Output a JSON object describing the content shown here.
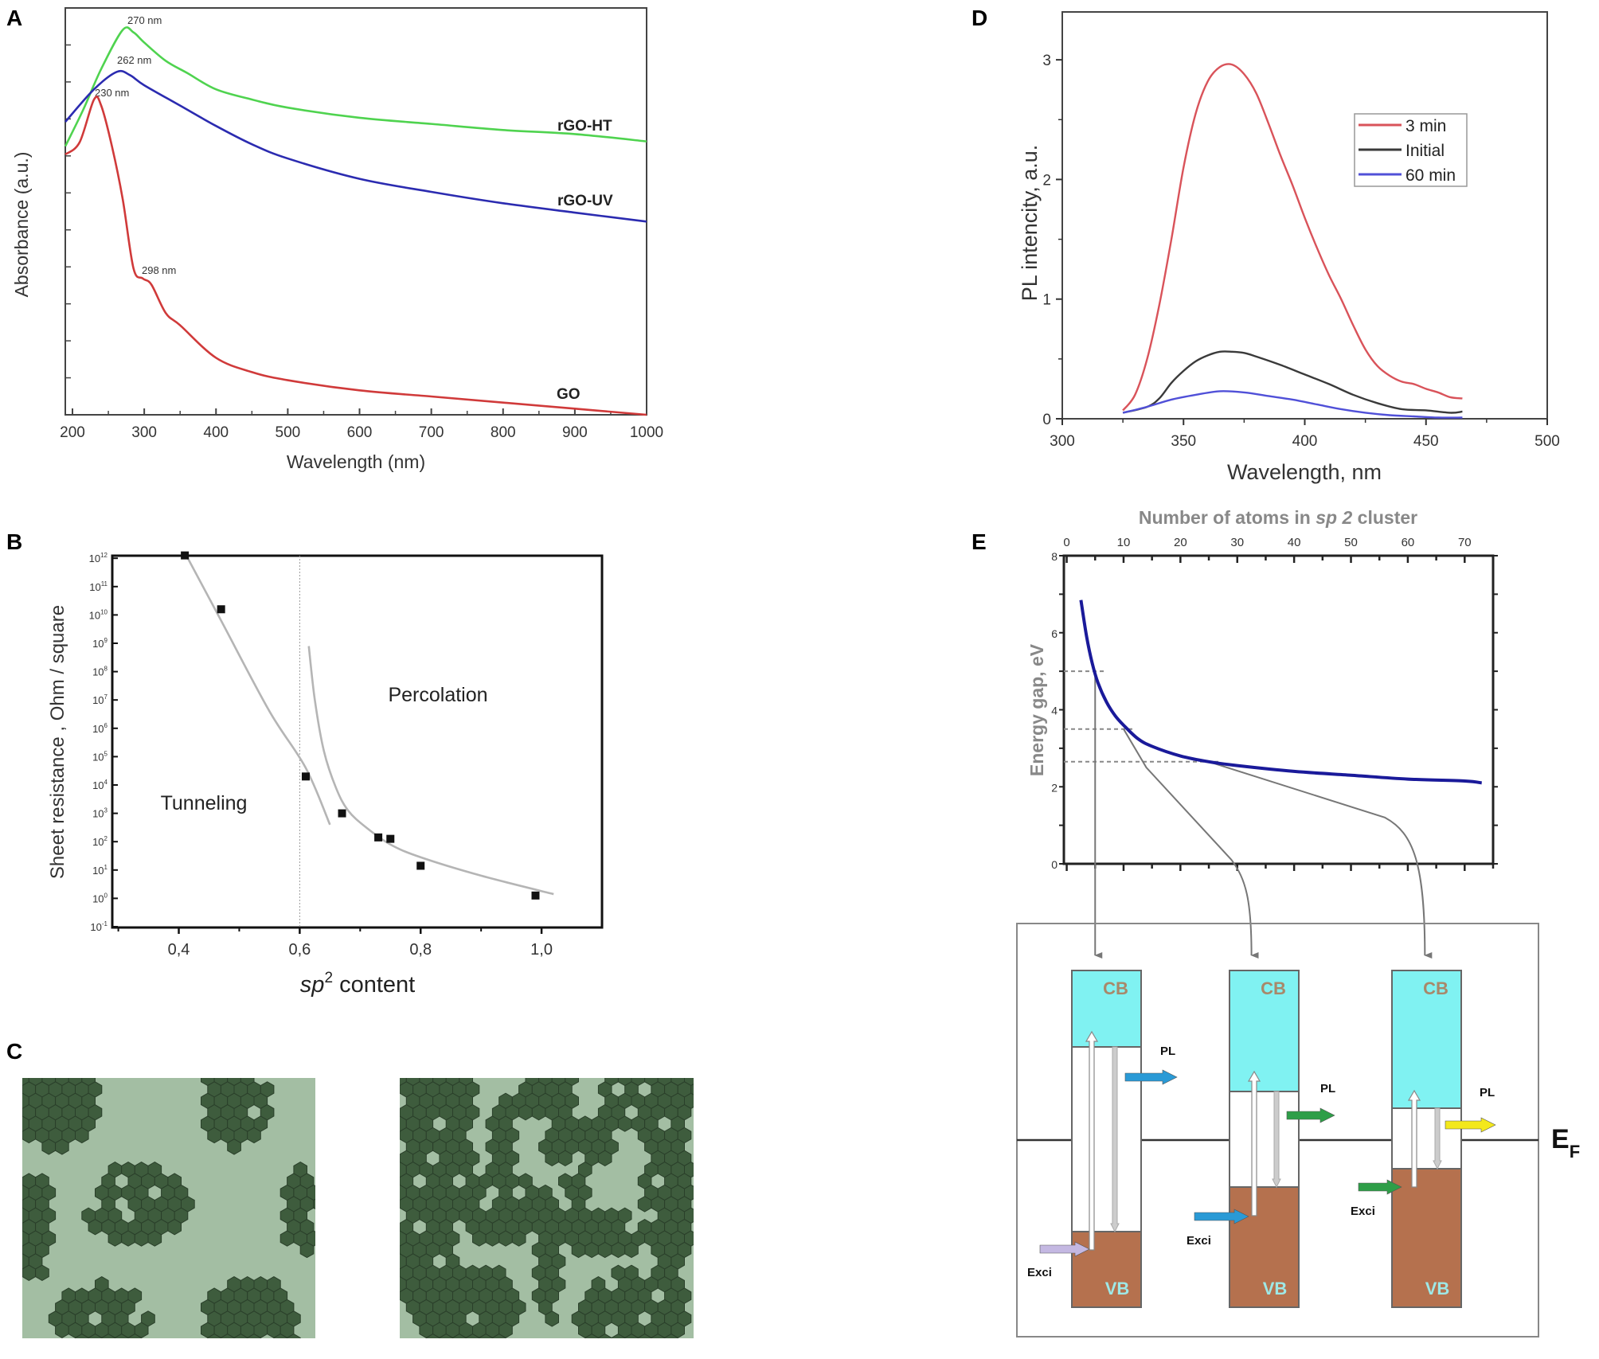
{
  "panels": {
    "a": "A",
    "b": "B",
    "c": "C",
    "d": "D",
    "e": "E"
  },
  "chart_data": [
    {
      "panel": "A",
      "type": "line",
      "xlabel": "Wavelength (nm)",
      "ylabel": "Absorbance (a.u.)",
      "xlim": [
        190,
        1000
      ],
      "ylim": [
        0,
        1
      ],
      "xticks": [
        "200",
        "300",
        "400",
        "500",
        "600",
        "700",
        "800",
        "900",
        "1000"
      ],
      "yticks_labeled": false,
      "grid": false,
      "annotations": [
        "270 nm",
        "262 nm",
        "230 nm",
        "298 nm"
      ],
      "series": [
        {
          "name": "rGO-HT",
          "color": "#4fd34f",
          "x": [
            190,
            215,
            240,
            270,
            285,
            300,
            330,
            360,
            400,
            450,
            500,
            600,
            700,
            800,
            900,
            1000
          ],
          "y": [
            0.66,
            0.75,
            0.85,
            0.946,
            0.94,
            0.915,
            0.87,
            0.84,
            0.8,
            0.775,
            0.755,
            0.73,
            0.715,
            0.7,
            0.69,
            0.672
          ]
        },
        {
          "name": "rGO-UV",
          "color": "#2b2bb0",
          "x": [
            190,
            230,
            262,
            280,
            300,
            350,
            400,
            450,
            500,
            600,
            700,
            800,
            900,
            1000
          ],
          "y": [
            0.72,
            0.8,
            0.843,
            0.835,
            0.81,
            0.76,
            0.71,
            0.665,
            0.63,
            0.58,
            0.548,
            0.52,
            0.497,
            0.475
          ]
        },
        {
          "name": "GO",
          "color": "#d03a3a",
          "x": [
            190,
            210,
            230,
            240,
            255,
            270,
            285,
            298,
            310,
            330,
            350,
            400,
            450,
            500,
            600,
            700,
            800,
            900,
            1000
          ],
          "y": [
            0.64,
            0.67,
            0.775,
            0.76,
            0.66,
            0.53,
            0.36,
            0.335,
            0.32,
            0.25,
            0.22,
            0.14,
            0.105,
            0.085,
            0.06,
            0.045,
            0.03,
            0.015,
            0.0
          ]
        }
      ]
    },
    {
      "panel": "D",
      "type": "line",
      "xlabel": "Wavelength, nm",
      "ylabel": "PL intencity, a.u.",
      "xlim": [
        300,
        500
      ],
      "ylim": [
        0,
        3.4
      ],
      "xticks": [
        "300",
        "350",
        "400",
        "450",
        "500"
      ],
      "yticks": [
        "0",
        "1",
        "2",
        "3"
      ],
      "grid": false,
      "legend": "top-right",
      "series": [
        {
          "name": "3 min",
          "color": "#d9535a",
          "x": [
            325,
            330,
            335,
            340,
            345,
            350,
            355,
            360,
            365,
            370,
            375,
            380,
            385,
            390,
            395,
            400,
            405,
            410,
            415,
            420,
            425,
            430,
            435,
            440,
            445,
            450,
            455,
            460,
            465
          ],
          "y": [
            0.07,
            0.2,
            0.5,
            0.95,
            1.5,
            2.1,
            2.55,
            2.82,
            2.94,
            2.96,
            2.88,
            2.72,
            2.47,
            2.2,
            1.95,
            1.68,
            1.43,
            1.2,
            1.0,
            0.78,
            0.58,
            0.44,
            0.36,
            0.31,
            0.29,
            0.25,
            0.22,
            0.18,
            0.17
          ]
        },
        {
          "name": "Initial",
          "color": "#3a3a3a",
          "x": [
            325,
            335,
            340,
            345,
            350,
            355,
            360,
            365,
            370,
            375,
            380,
            390,
            400,
            410,
            420,
            430,
            440,
            450,
            460,
            465
          ],
          "y": [
            0.05,
            0.1,
            0.17,
            0.3,
            0.4,
            0.48,
            0.53,
            0.56,
            0.56,
            0.55,
            0.52,
            0.45,
            0.37,
            0.29,
            0.2,
            0.13,
            0.08,
            0.07,
            0.05,
            0.06
          ]
        },
        {
          "name": "60 min",
          "color": "#5050d8",
          "x": [
            325,
            335,
            345,
            355,
            365,
            375,
            385,
            395,
            405,
            415,
            425,
            435,
            445,
            455,
            465
          ],
          "y": [
            0.05,
            0.1,
            0.16,
            0.2,
            0.23,
            0.22,
            0.19,
            0.16,
            0.12,
            0.08,
            0.05,
            0.03,
            0.02,
            0.01,
            0.01
          ]
        }
      ]
    },
    {
      "panel": "B",
      "type": "scatter",
      "xlabel": {
        "italic": "sp",
        "sup": "2",
        "rest": " content"
      },
      "ylabel": "Sheet resistance , Ohm / square",
      "xlim": [
        0.29,
        1.1
      ],
      "ylim_log10": [
        -1,
        12.1
      ],
      "yscale": "log",
      "xticks": [
        "0,4",
        "0,6",
        "0,8",
        "1,0"
      ],
      "ytick_exponents": [
        "-1",
        "0",
        "1",
        "2",
        "3",
        "4",
        "5",
        "6",
        "7",
        "8",
        "9",
        "10",
        "11",
        "12"
      ],
      "ytick_base": "10",
      "threshold_x": 0.6,
      "regions": [
        "Tunneling",
        "Percolation"
      ],
      "points": {
        "x": [
          0.41,
          0.47,
          0.61,
          0.67,
          0.73,
          0.75,
          0.8,
          0.99
        ],
        "log10_y": [
          12.1,
          10.2,
          4.3,
          3.0,
          2.15,
          2.1,
          1.15,
          0.1
        ]
      },
      "fits": [
        {
          "x": [
            0.41,
            0.47,
            0.55,
            0.61,
            0.65
          ],
          "log10_y": [
            12.2,
            9.8,
            6.6,
            4.6,
            2.6
          ]
        },
        {
          "x": [
            0.615,
            0.625,
            0.64,
            0.66,
            0.68,
            0.71,
            0.75,
            0.8,
            0.9,
            1.02
          ],
          "log10_y": [
            8.9,
            7.0,
            5.2,
            3.9,
            3.1,
            2.5,
            1.9,
            1.45,
            0.8,
            0.15
          ]
        }
      ]
    },
    {
      "panel": "E",
      "type": "line",
      "title": {
        "pre": "Number of atoms in ",
        "italic": "sp 2",
        "post": " cluster"
      },
      "ylabel": "Energy gap, eV",
      "xlim": [
        -0.5,
        75
      ],
      "ylim": [
        0,
        8
      ],
      "xticks": [
        "0",
        "10",
        "20",
        "30",
        "40",
        "50",
        "60",
        "70"
      ],
      "yticks": [
        "0",
        "2",
        "4",
        "6",
        "8"
      ],
      "xaxis_position": "top",
      "grid": false,
      "series": [
        {
          "color": "#1a1a9a",
          "x": [
            2.5,
            3.5,
            4.5,
            5.5,
            7,
            8.5,
            10,
            12.5,
            15,
            20,
            25,
            30,
            40,
            50,
            60,
            70,
            73
          ],
          "y": [
            6.85,
            5.9,
            5.2,
            4.7,
            4.2,
            3.85,
            3.6,
            3.25,
            3.05,
            2.8,
            2.65,
            2.55,
            2.4,
            2.3,
            2.2,
            2.15,
            2.1
          ]
        }
      ],
      "reference_levels": [
        5.0,
        3.5,
        2.65
      ]
    }
  ],
  "band_diagram": {
    "cb_label": "CB",
    "vb_label": "VB",
    "pl_label": "PL",
    "exci_label": "Exci",
    "fermi": {
      "main": "E",
      "sub": "F"
    },
    "colors": {
      "cb": "#80f2f2",
      "vb": "#b5714e",
      "pl": [
        "#2a9ad6",
        "#2e9e48",
        "#f3e81c"
      ],
      "exci": [
        "#c4b8e2",
        "#2a9ad6",
        "#2e9e48"
      ]
    }
  },
  "panel_c_colors": {
    "background": "#a3bea3",
    "cluster": "#3e5c3d"
  }
}
